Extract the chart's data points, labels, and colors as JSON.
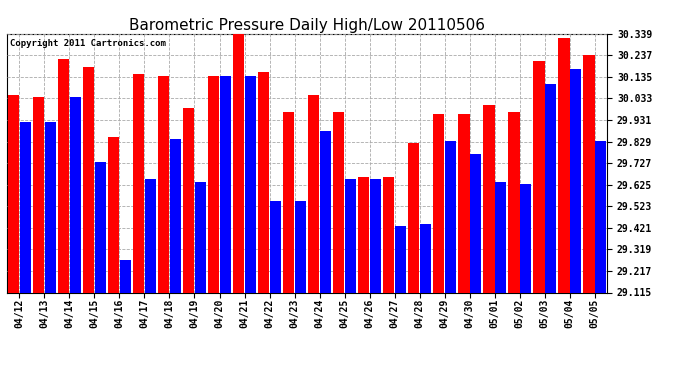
{
  "title": "Barometric Pressure Daily High/Low 20110506",
  "copyright": "Copyright 2011 Cartronics.com",
  "dates": [
    "04/12",
    "04/13",
    "04/14",
    "04/15",
    "04/16",
    "04/17",
    "04/18",
    "04/19",
    "04/20",
    "04/21",
    "04/22",
    "04/23",
    "04/24",
    "04/25",
    "04/26",
    "04/27",
    "04/28",
    "04/29",
    "04/30",
    "05/01",
    "05/02",
    "05/03",
    "05/04",
    "05/05"
  ],
  "highs": [
    30.05,
    30.04,
    30.22,
    30.18,
    29.85,
    30.15,
    30.14,
    29.99,
    30.14,
    30.34,
    30.16,
    29.97,
    30.05,
    29.97,
    29.66,
    29.66,
    29.82,
    29.96,
    29.96,
    30.0,
    29.97,
    30.21,
    30.32,
    30.24
  ],
  "lows": [
    29.92,
    29.92,
    30.04,
    29.73,
    29.27,
    29.65,
    29.84,
    29.64,
    30.14,
    30.14,
    29.55,
    29.55,
    29.88,
    29.65,
    29.65,
    29.43,
    29.44,
    29.83,
    29.77,
    29.64,
    29.63,
    30.1,
    30.17,
    29.83
  ],
  "ylim_min": 29.115,
  "ylim_max": 30.339,
  "yticks": [
    29.115,
    29.217,
    29.319,
    29.421,
    29.523,
    29.625,
    29.727,
    29.829,
    29.931,
    30.033,
    30.135,
    30.237,
    30.339
  ],
  "bar_color_high": "#ff0000",
  "bar_color_low": "#0000ff",
  "bg_color": "#ffffff",
  "grid_color": "#aaaaaa",
  "title_fontsize": 11,
  "tick_fontsize": 7,
  "copyright_fontsize": 6.5
}
